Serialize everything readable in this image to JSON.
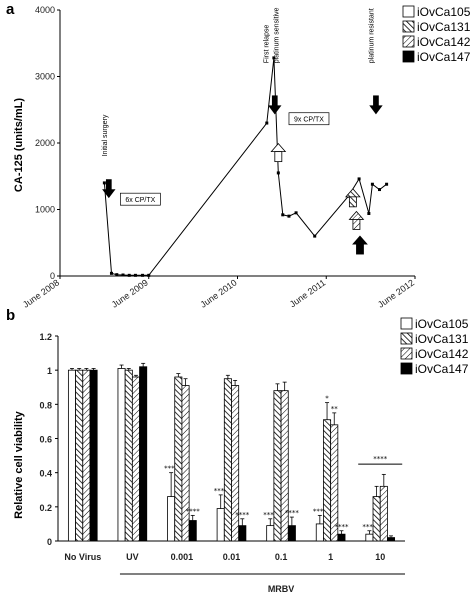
{
  "panel_a": {
    "label": "a",
    "chart_data": {
      "type": "line",
      "ylabel": "CA-125 (units/mL)",
      "ylim": [
        0,
        4000
      ],
      "yticks": [
        0,
        1000,
        2000,
        3000,
        4000
      ],
      "xticks": [
        "June 2008",
        "June 2009",
        "June 2010",
        "June 2011",
        "June 2012"
      ],
      "xlim_years": [
        2008.42,
        2012.42
      ],
      "points": [
        [
          2008.92,
          1400
        ],
        [
          2009.0,
          40
        ],
        [
          2009.06,
          20
        ],
        [
          2009.13,
          15
        ],
        [
          2009.2,
          10
        ],
        [
          2009.27,
          10
        ],
        [
          2009.35,
          10
        ],
        [
          2009.42,
          10
        ],
        [
          2010.75,
          2300
        ],
        [
          2010.83,
          3280
        ],
        [
          2010.88,
          1550
        ],
        [
          2010.93,
          920
        ],
        [
          2011.0,
          900
        ],
        [
          2011.08,
          950
        ],
        [
          2011.29,
          600
        ],
        [
          2011.67,
          1200
        ],
        [
          2011.79,
          1460
        ],
        [
          2011.9,
          940
        ],
        [
          2011.94,
          1380
        ],
        [
          2012.02,
          1300
        ],
        [
          2012.1,
          1380
        ]
      ],
      "annotations": [
        {
          "text": "Initial surgery",
          "year": 2008.95,
          "arrow_value": 1000,
          "text_value": 1800
        },
        {
          "text": "First relapse",
          "year": 2010.77,
          "arrow_value": 2700,
          "text_value": 3200
        },
        {
          "text": "platinum sensitive",
          "year": 2010.88,
          "arrow_value": 2700,
          "text_value": 3200
        },
        {
          "text": "platinum resistant",
          "year": 2011.95,
          "arrow_value": 2700,
          "text_value": 3200
        }
      ],
      "boxes": [
        {
          "text": "6x CP/TX",
          "year": 2009.1,
          "value": 1140
        },
        {
          "text": "9x CP/TX",
          "year": 2011.0,
          "value": 2350
        }
      ],
      "legend": [
        "iOvCa105",
        "iOvCa131",
        "iOvCa142",
        "iOvCa147"
      ]
    }
  },
  "panel_b": {
    "label": "b",
    "chart_data": {
      "type": "bar",
      "ylabel": "Relative cell viability",
      "ylim": [
        0,
        1.2
      ],
      "yticks": [
        0,
        0.2,
        0.4,
        0.6,
        0.8,
        1.0,
        1.2
      ],
      "ytick_labels": [
        "0",
        "0.2",
        "0.4",
        "0.6",
        "0.8",
        "1",
        "1.2"
      ],
      "categories": [
        "No Virus",
        "UV",
        "0.001",
        "0.01",
        "0.1",
        "1",
        "10"
      ],
      "group_label": "MRBV",
      "series": [
        {
          "name": "iOvCa105",
          "values": [
            1.0,
            1.01,
            0.26,
            0.19,
            0.09,
            0.1,
            0.04
          ],
          "errors": [
            0.01,
            0.02,
            0.14,
            0.08,
            0.04,
            0.05,
            0.02
          ]
        },
        {
          "name": "iOvCa131",
          "values": [
            1.0,
            1.0,
            0.96,
            0.95,
            0.88,
            0.71,
            0.26
          ],
          "errors": [
            0.01,
            0.01,
            0.02,
            0.02,
            0.04,
            0.1,
            0.06
          ]
        },
        {
          "name": "iOvCa142",
          "values": [
            1.0,
            0.96,
            0.91,
            0.91,
            0.88,
            0.68,
            0.32
          ],
          "errors": [
            0.01,
            0.01,
            0.04,
            0.03,
            0.05,
            0.07,
            0.07
          ]
        },
        {
          "name": "iOvCa147",
          "values": [
            1.0,
            1.02,
            0.12,
            0.09,
            0.09,
            0.04,
            0.02
          ],
          "errors": [
            0.01,
            0.02,
            0.03,
            0.04,
            0.05,
            0.02,
            0.01
          ]
        }
      ],
      "significance": [
        [
          "",
          "",
          "****",
          "****",
          "****",
          "****",
          "****"
        ],
        [
          "",
          "",
          "",
          "",
          "",
          "*",
          ""
        ],
        [
          "",
          "",
          "",
          "",
          "",
          "**",
          ""
        ],
        [
          "",
          "",
          "****",
          "****",
          "****",
          "****",
          ""
        ]
      ],
      "bracket_label": "****"
    }
  }
}
